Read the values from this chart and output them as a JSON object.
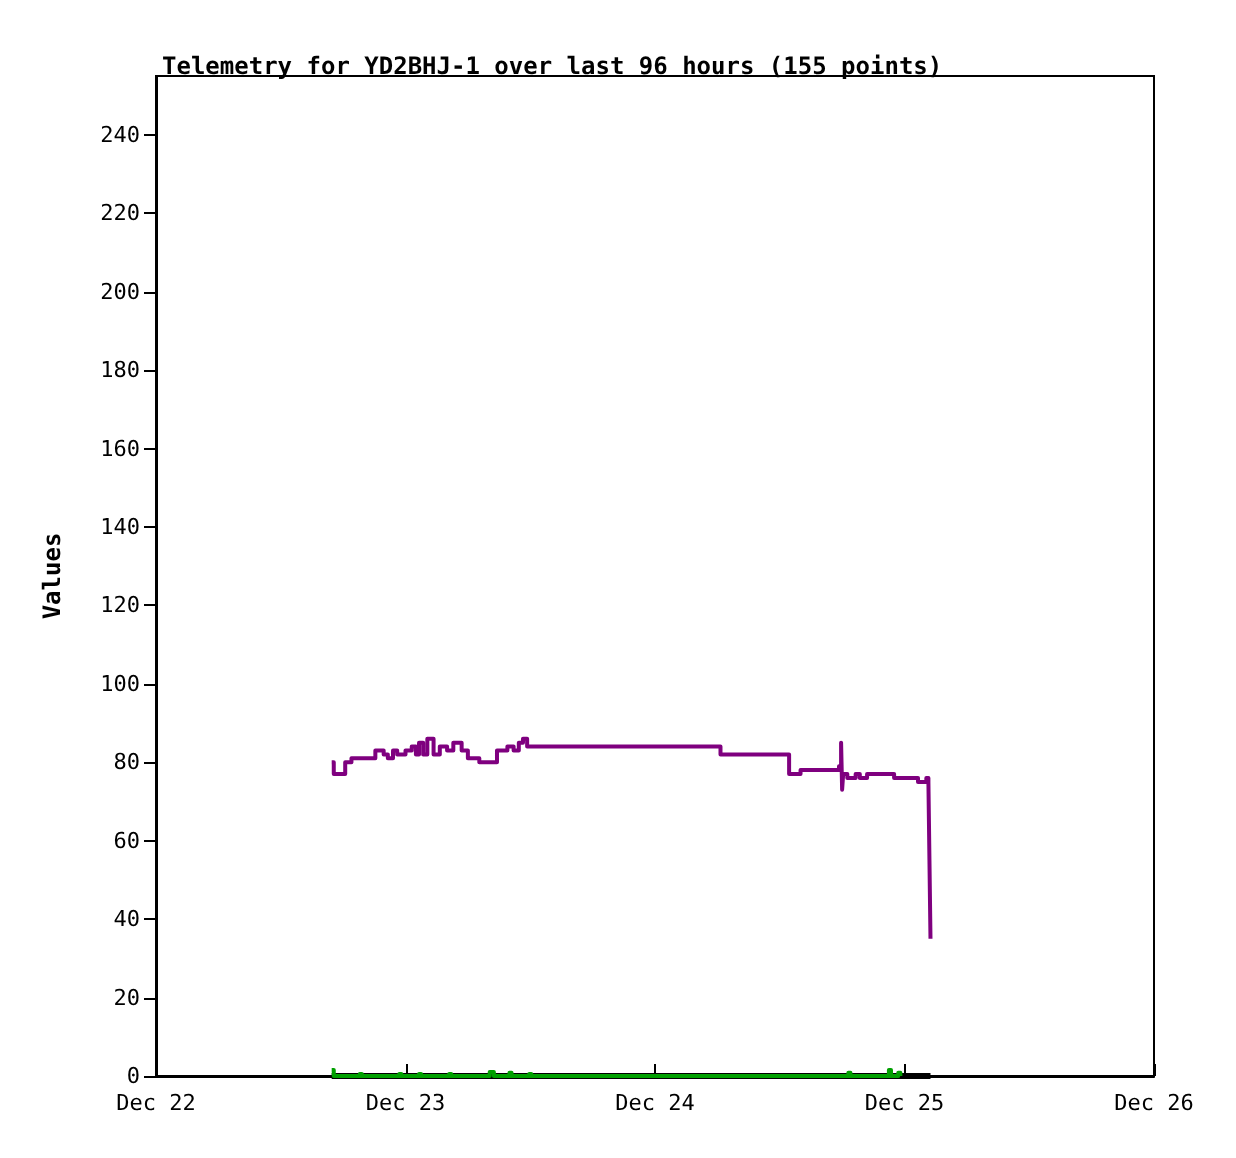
{
  "chart_data": {
    "type": "step",
    "title": "Telemetry for YD2BHJ-1 over last 96 hours (155 points)",
    "ylabel": "Values",
    "xlim": [
      "--12-22",
      "--12-26"
    ],
    "xticks": [
      {
        "value": "--12-22",
        "label": "Dec 22"
      },
      {
        "value": "--12-23",
        "label": "Dec 23"
      },
      {
        "value": "--12-24",
        "label": "Dec 24"
      },
      {
        "value": "--12-25",
        "label": "Dec 25"
      },
      {
        "value": "--12-26",
        "label": "Dec 26"
      }
    ],
    "ylim": [
      0,
      255
    ],
    "yticks": [
      0,
      20,
      40,
      60,
      80,
      100,
      120,
      140,
      160,
      180,
      200,
      220,
      240
    ],
    "grid": false,
    "marker": "none",
    "series": [
      {
        "color": "#000000",
        "x": [
          "--12-22T16:54",
          "--12-25T02:30"
        ],
        "values": [
          0,
          0
        ]
      },
      {
        "color": "#00a000",
        "x": [
          "--12-22T16:54",
          "--12-22T17:06",
          "--12-22T19:36",
          "--12-22T19:48",
          "--12-22T23:24",
          "--12-22T23:36",
          "--12-23T01:18",
          "--12-23T01:30",
          "--12-23T04:12",
          "--12-23T04:24",
          "--12-23T08:06",
          "--12-23T08:30",
          "--12-23T10:00",
          "--12-23T10:12",
          "--12-23T11:54",
          "--12-23T12:06",
          "--12-24T18:36",
          "--12-24T18:48",
          "--12-24T22:30",
          "--12-24T22:42",
          "--12-24T23:24",
          "--12-24T23:36"
        ],
        "values": [
          1.5,
          0,
          0.5,
          0,
          0.5,
          0,
          0.5,
          0,
          0.5,
          0,
          1,
          0,
          0.8,
          0,
          0.5,
          0,
          0.8,
          0,
          1.5,
          0,
          0.8,
          0
        ]
      },
      {
        "color": "#7f007f",
        "x": [
          "--12-22T16:54",
          "--12-22T17:06",
          "--12-22T17:54",
          "--12-22T18:12",
          "--12-22T18:48",
          "--12-22T20:30",
          "--12-22T21:06",
          "--12-22T21:54",
          "--12-22T22:18",
          "--12-22T22:48",
          "--12-22T23:12",
          "--12-23T00:00",
          "--12-23T00:36",
          "--12-23T01:00",
          "--12-23T01:18",
          "--12-23T01:42",
          "--12-23T02:06",
          "--12-23T02:42",
          "--12-23T03:18",
          "--12-23T04:00",
          "--12-23T04:36",
          "--12-23T05:24",
          "--12-23T06:00",
          "--12-23T07:06",
          "--12-23T08:18",
          "--12-23T08:48",
          "--12-23T09:48",
          "--12-23T10:24",
          "--12-23T10:54",
          "--12-23T11:18",
          "--12-23T11:42",
          "--12-24T06:18",
          "--12-24T12:54",
          "--12-24T14:00",
          "--12-24T15:42",
          "--12-24T17:42",
          "--12-24T17:54",
          "--12-24T18:00",
          "--12-24T18:06",
          "--12-24T18:30",
          "--12-24T19:18",
          "--12-24T19:42",
          "--12-24T20:24",
          "--12-24T21:30",
          "--12-24T23:00",
          "--12-25T00:24",
          "--12-25T01:18",
          "--12-25T02:06",
          "--12-25T02:18",
          "--12-25T02:24",
          "--12-25T02:30"
        ],
        "values": [
          80,
          77,
          77,
          80,
          81,
          81,
          83,
          82,
          81,
          83,
          82,
          83,
          84,
          82,
          85,
          82,
          86,
          82,
          84,
          83,
          85,
          83,
          81,
          80,
          80,
          83,
          84,
          83,
          85,
          86,
          84,
          82,
          77,
          78,
          78,
          79,
          85,
          73,
          77,
          76,
          77,
          76,
          77,
          77,
          76,
          76,
          75,
          76,
          75,
          55,
          35
        ]
      }
    ]
  }
}
